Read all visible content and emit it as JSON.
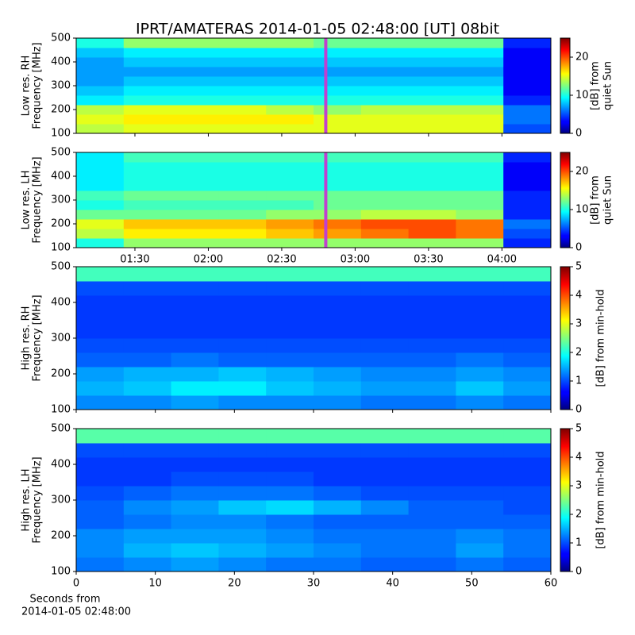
{
  "chart_data": [
    {
      "type": "heatmap",
      "title": "IPRT/AMATERAS 2014-01-05 02:48:00 [UT]   08bit",
      "ylabel": [
        "Low res. RH",
        "Frequency [MHz]"
      ],
      "ylim": [
        100,
        500
      ],
      "yticks": [
        100,
        200,
        300,
        400,
        500
      ],
      "xlim": [
        66,
        260
      ],
      "colormap": "jet",
      "clim": [
        0,
        25
      ],
      "cticks": [
        0,
        10,
        20
      ],
      "clabel": [
        "[dB] from",
        "quiet Sun"
      ],
      "marker_x": 168,
      "marker_color": "#c040d0",
      "z": [
        [
          14,
          15,
          15,
          15,
          15,
          15,
          15,
          15,
          15,
          5
        ],
        [
          15,
          16,
          16,
          16,
          16,
          15,
          15,
          15,
          15,
          6
        ],
        [
          14,
          15,
          15,
          15,
          14,
          13,
          14,
          14,
          14,
          6
        ],
        [
          9,
          10,
          10,
          10,
          10,
          10,
          10,
          10,
          10,
          4
        ],
        [
          8,
          9,
          9,
          9,
          9,
          9,
          9,
          9,
          9,
          3
        ],
        [
          7,
          8,
          8,
          8,
          8,
          8,
          8,
          8,
          8,
          3
        ],
        [
          7,
          7,
          7,
          7,
          7,
          7,
          7,
          7,
          7,
          3
        ],
        [
          7,
          8,
          8,
          8,
          8,
          8,
          8,
          8,
          8,
          3
        ],
        [
          8,
          9,
          9,
          9,
          9,
          9,
          9,
          9,
          9,
          3
        ],
        [
          10,
          13,
          13,
          13,
          13,
          12,
          12,
          12,
          12,
          4
        ]
      ]
    },
    {
      "type": "heatmap",
      "ylabel": [
        "Low res. LH",
        "Frequency [MHz]"
      ],
      "ylim": [
        100,
        500
      ],
      "yticks": [
        100,
        200,
        300,
        400,
        500
      ],
      "xlim": [
        66,
        260
      ],
      "xticks": [
        {
          "value": 90,
          "label": "01:30"
        },
        {
          "value": 120,
          "label": "02:00"
        },
        {
          "value": 150,
          "label": "02:30"
        },
        {
          "value": 180,
          "label": "03:00"
        },
        {
          "value": 210,
          "label": "03:30"
        },
        {
          "value": 240,
          "label": "04:00"
        }
      ],
      "colormap": "jet",
      "clim": [
        0,
        25
      ],
      "cticks": [
        0,
        10,
        20
      ],
      "clabel": [
        "[dB] from",
        "quiet Sun"
      ],
      "marker_x": 168,
      "marker_color": "#c040d0",
      "z": [
        [
          10,
          13,
          13,
          13,
          13,
          13,
          13,
          13,
          13,
          4
        ],
        [
          14,
          16,
          16,
          16,
          17,
          18,
          19,
          20,
          19,
          5
        ],
        [
          15,
          17,
          17,
          17,
          18,
          19,
          20,
          20,
          19,
          6
        ],
        [
          12,
          12,
          12,
          12,
          13,
          13,
          14,
          14,
          13,
          4
        ],
        [
          10,
          11,
          11,
          11,
          11,
          12,
          12,
          12,
          12,
          4
        ],
        [
          11,
          12,
          12,
          12,
          12,
          12,
          12,
          12,
          12,
          4
        ],
        [
          9,
          10,
          10,
          10,
          10,
          10,
          10,
          10,
          10,
          3
        ],
        [
          9,
          10,
          10,
          10,
          10,
          10,
          10,
          10,
          10,
          3
        ],
        [
          9,
          10,
          10,
          10,
          10,
          10,
          10,
          10,
          10,
          3
        ],
        [
          9,
          11,
          11,
          11,
          11,
          11,
          11,
          11,
          11,
          4
        ]
      ]
    },
    {
      "type": "heatmap",
      "ylabel": [
        "High res. RH",
        "Frequency [MHz]"
      ],
      "ylim": [
        100,
        500
      ],
      "yticks": [
        100,
        200,
        300,
        400,
        500
      ],
      "xlim": [
        0,
        60
      ],
      "colormap": "jet",
      "clim": [
        0,
        5
      ],
      "cticks": [
        0,
        1,
        2,
        3,
        4,
        5
      ],
      "clabel": [
        "[dB] from min-hold"
      ],
      "z": [
        [
          1.3,
          1.3,
          1.4,
          1.3,
          1.3,
          1.3,
          1.2,
          1.2,
          1.3,
          1.2
        ],
        [
          1.5,
          1.6,
          1.8,
          1.8,
          1.6,
          1.5,
          1.4,
          1.4,
          1.6,
          1.4
        ],
        [
          1.4,
          1.5,
          1.5,
          1.6,
          1.5,
          1.4,
          1.3,
          1.3,
          1.4,
          1.3
        ],
        [
          1.1,
          1.1,
          1.2,
          1.1,
          1.1,
          1.1,
          1.1,
          1.1,
          1.2,
          1.1
        ],
        [
          1.0,
          1.0,
          1.0,
          1.0,
          1.0,
          1.0,
          1.0,
          1.0,
          1.0,
          1.0
        ],
        [
          0.9,
          0.9,
          0.9,
          0.9,
          0.9,
          0.9,
          0.9,
          0.9,
          0.9,
          0.9
        ],
        [
          0.9,
          0.9,
          0.9,
          0.9,
          0.9,
          0.9,
          0.9,
          0.9,
          0.9,
          0.9
        ],
        [
          0.9,
          0.9,
          0.9,
          0.9,
          0.9,
          0.9,
          0.9,
          0.9,
          0.9,
          0.9
        ],
        [
          1.0,
          1.0,
          1.0,
          1.0,
          1.0,
          1.0,
          1.0,
          1.0,
          1.0,
          1.0
        ],
        [
          2.2,
          2.2,
          2.2,
          2.2,
          2.2,
          2.2,
          2.2,
          2.2,
          2.2,
          2.2
        ]
      ]
    },
    {
      "type": "heatmap",
      "ylabel": [
        "High res. LH",
        "Frequency [MHz]"
      ],
      "ylim": [
        100,
        500
      ],
      "yticks": [
        100,
        200,
        300,
        400,
        500
      ],
      "xlim": [
        0,
        60
      ],
      "xticks": [
        0,
        10,
        20,
        30,
        40,
        50,
        60
      ],
      "xlabel": [
        "Seconds from",
        "2014-01-05 02:48:00"
      ],
      "colormap": "jet",
      "clim": [
        0,
        5
      ],
      "cticks": [
        0,
        1,
        2,
        3,
        4,
        5
      ],
      "clabel": [
        "[dB] from min-hold"
      ],
      "z": [
        [
          1.2,
          1.3,
          1.4,
          1.3,
          1.2,
          1.2,
          1.1,
          1.1,
          1.2,
          1.1
        ],
        [
          1.3,
          1.5,
          1.6,
          1.5,
          1.4,
          1.3,
          1.2,
          1.2,
          1.4,
          1.2
        ],
        [
          1.3,
          1.4,
          1.4,
          1.4,
          1.3,
          1.2,
          1.2,
          1.2,
          1.3,
          1.2
        ],
        [
          1.1,
          1.2,
          1.3,
          1.3,
          1.2,
          1.1,
          1.1,
          1.1,
          1.1,
          1.1
        ],
        [
          1.1,
          1.3,
          1.4,
          1.6,
          1.7,
          1.5,
          1.3,
          1.1,
          1.1,
          1.0
        ],
        [
          1.0,
          1.1,
          1.2,
          1.2,
          1.2,
          1.1,
          1.0,
          1.0,
          1.0,
          1.0
        ],
        [
          0.9,
          0.9,
          1.0,
          1.0,
          1.0,
          0.9,
          0.9,
          0.9,
          0.9,
          0.9
        ],
        [
          0.9,
          0.9,
          0.9,
          0.9,
          0.9,
          0.9,
          0.9,
          0.9,
          0.9,
          0.9
        ],
        [
          1.0,
          1.0,
          1.0,
          1.0,
          1.0,
          1.0,
          1.0,
          1.0,
          1.0,
          1.0
        ],
        [
          2.3,
          2.3,
          2.3,
          2.3,
          2.3,
          2.3,
          2.3,
          2.3,
          2.3,
          2.3
        ]
      ]
    }
  ]
}
